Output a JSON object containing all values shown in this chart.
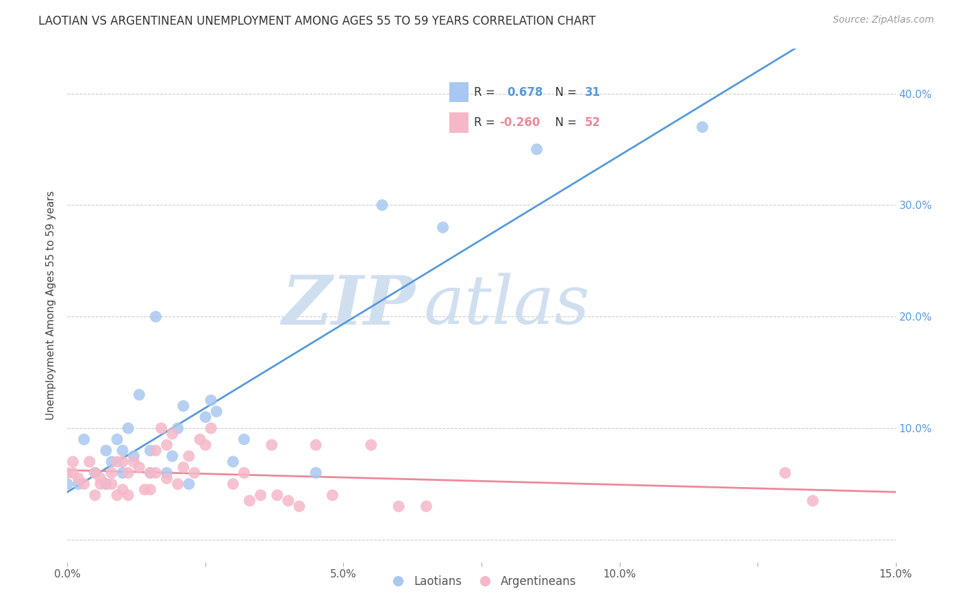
{
  "title": "LAOTIAN VS ARGENTINEAN UNEMPLOYMENT AMONG AGES 55 TO 59 YEARS CORRELATION CHART",
  "source": "Source: ZipAtlas.com",
  "ylabel": "Unemployment Among Ages 55 to 59 years",
  "xlim": [
    0.0,
    0.15
  ],
  "ylim": [
    -0.02,
    0.44
  ],
  "xticks": [
    0.0,
    0.025,
    0.05,
    0.075,
    0.1,
    0.125,
    0.15
  ],
  "xticklabels": [
    "0.0%",
    "",
    "5.0%",
    "",
    "10.0%",
    "",
    "15.0%"
  ],
  "yticks": [
    0.0,
    0.1,
    0.2,
    0.3,
    0.4
  ],
  "yticklabels": [
    "",
    "10.0%",
    "20.0%",
    "30.0%",
    "40.0%"
  ],
  "laotian_color": "#a8c8f0",
  "argentinean_color": "#f5b8c8",
  "laotian_line_color": "#5599dd",
  "argentinean_line_color": "#ee8899",
  "laotian_R": "0.678",
  "laotian_N": "31",
  "argentinean_R": "-0.260",
  "argentinean_N": "52",
  "watermark_zip": "ZIP",
  "watermark_atlas": "atlas",
  "legend_label1": "R = ",
  "legend_label2": "R =",
  "legend_n1": "N = ",
  "legend_n2": "N = ",
  "laotian_x": [
    0.0,
    0.002,
    0.003,
    0.005,
    0.007,
    0.007,
    0.008,
    0.009,
    0.01,
    0.01,
    0.011,
    0.012,
    0.013,
    0.015,
    0.015,
    0.016,
    0.018,
    0.019,
    0.02,
    0.021,
    0.022,
    0.025,
    0.026,
    0.027,
    0.03,
    0.032,
    0.045,
    0.057,
    0.068,
    0.085,
    0.115
  ],
  "laotian_y": [
    0.05,
    0.05,
    0.09,
    0.06,
    0.05,
    0.08,
    0.07,
    0.09,
    0.06,
    0.08,
    0.1,
    0.075,
    0.13,
    0.06,
    0.08,
    0.2,
    0.06,
    0.075,
    0.1,
    0.12,
    0.05,
    0.11,
    0.125,
    0.115,
    0.07,
    0.09,
    0.06,
    0.3,
    0.28,
    0.35,
    0.37
  ],
  "argentinean_x": [
    0.0,
    0.001,
    0.001,
    0.002,
    0.003,
    0.004,
    0.005,
    0.005,
    0.006,
    0.006,
    0.007,
    0.008,
    0.008,
    0.009,
    0.009,
    0.01,
    0.01,
    0.011,
    0.011,
    0.012,
    0.013,
    0.014,
    0.015,
    0.015,
    0.016,
    0.016,
    0.017,
    0.018,
    0.018,
    0.019,
    0.02,
    0.021,
    0.022,
    0.023,
    0.024,
    0.025,
    0.026,
    0.03,
    0.032,
    0.033,
    0.035,
    0.037,
    0.038,
    0.04,
    0.042,
    0.045,
    0.048,
    0.055,
    0.06,
    0.065,
    0.13,
    0.135
  ],
  "argentinean_y": [
    0.06,
    0.06,
    0.07,
    0.055,
    0.05,
    0.07,
    0.04,
    0.06,
    0.05,
    0.055,
    0.05,
    0.05,
    0.06,
    0.04,
    0.07,
    0.045,
    0.07,
    0.04,
    0.06,
    0.07,
    0.065,
    0.045,
    0.045,
    0.06,
    0.06,
    0.08,
    0.1,
    0.055,
    0.085,
    0.095,
    0.05,
    0.065,
    0.075,
    0.06,
    0.09,
    0.085,
    0.1,
    0.05,
    0.06,
    0.035,
    0.04,
    0.085,
    0.04,
    0.035,
    0.03,
    0.085,
    0.04,
    0.085,
    0.03,
    0.03,
    0.06,
    0.035
  ]
}
